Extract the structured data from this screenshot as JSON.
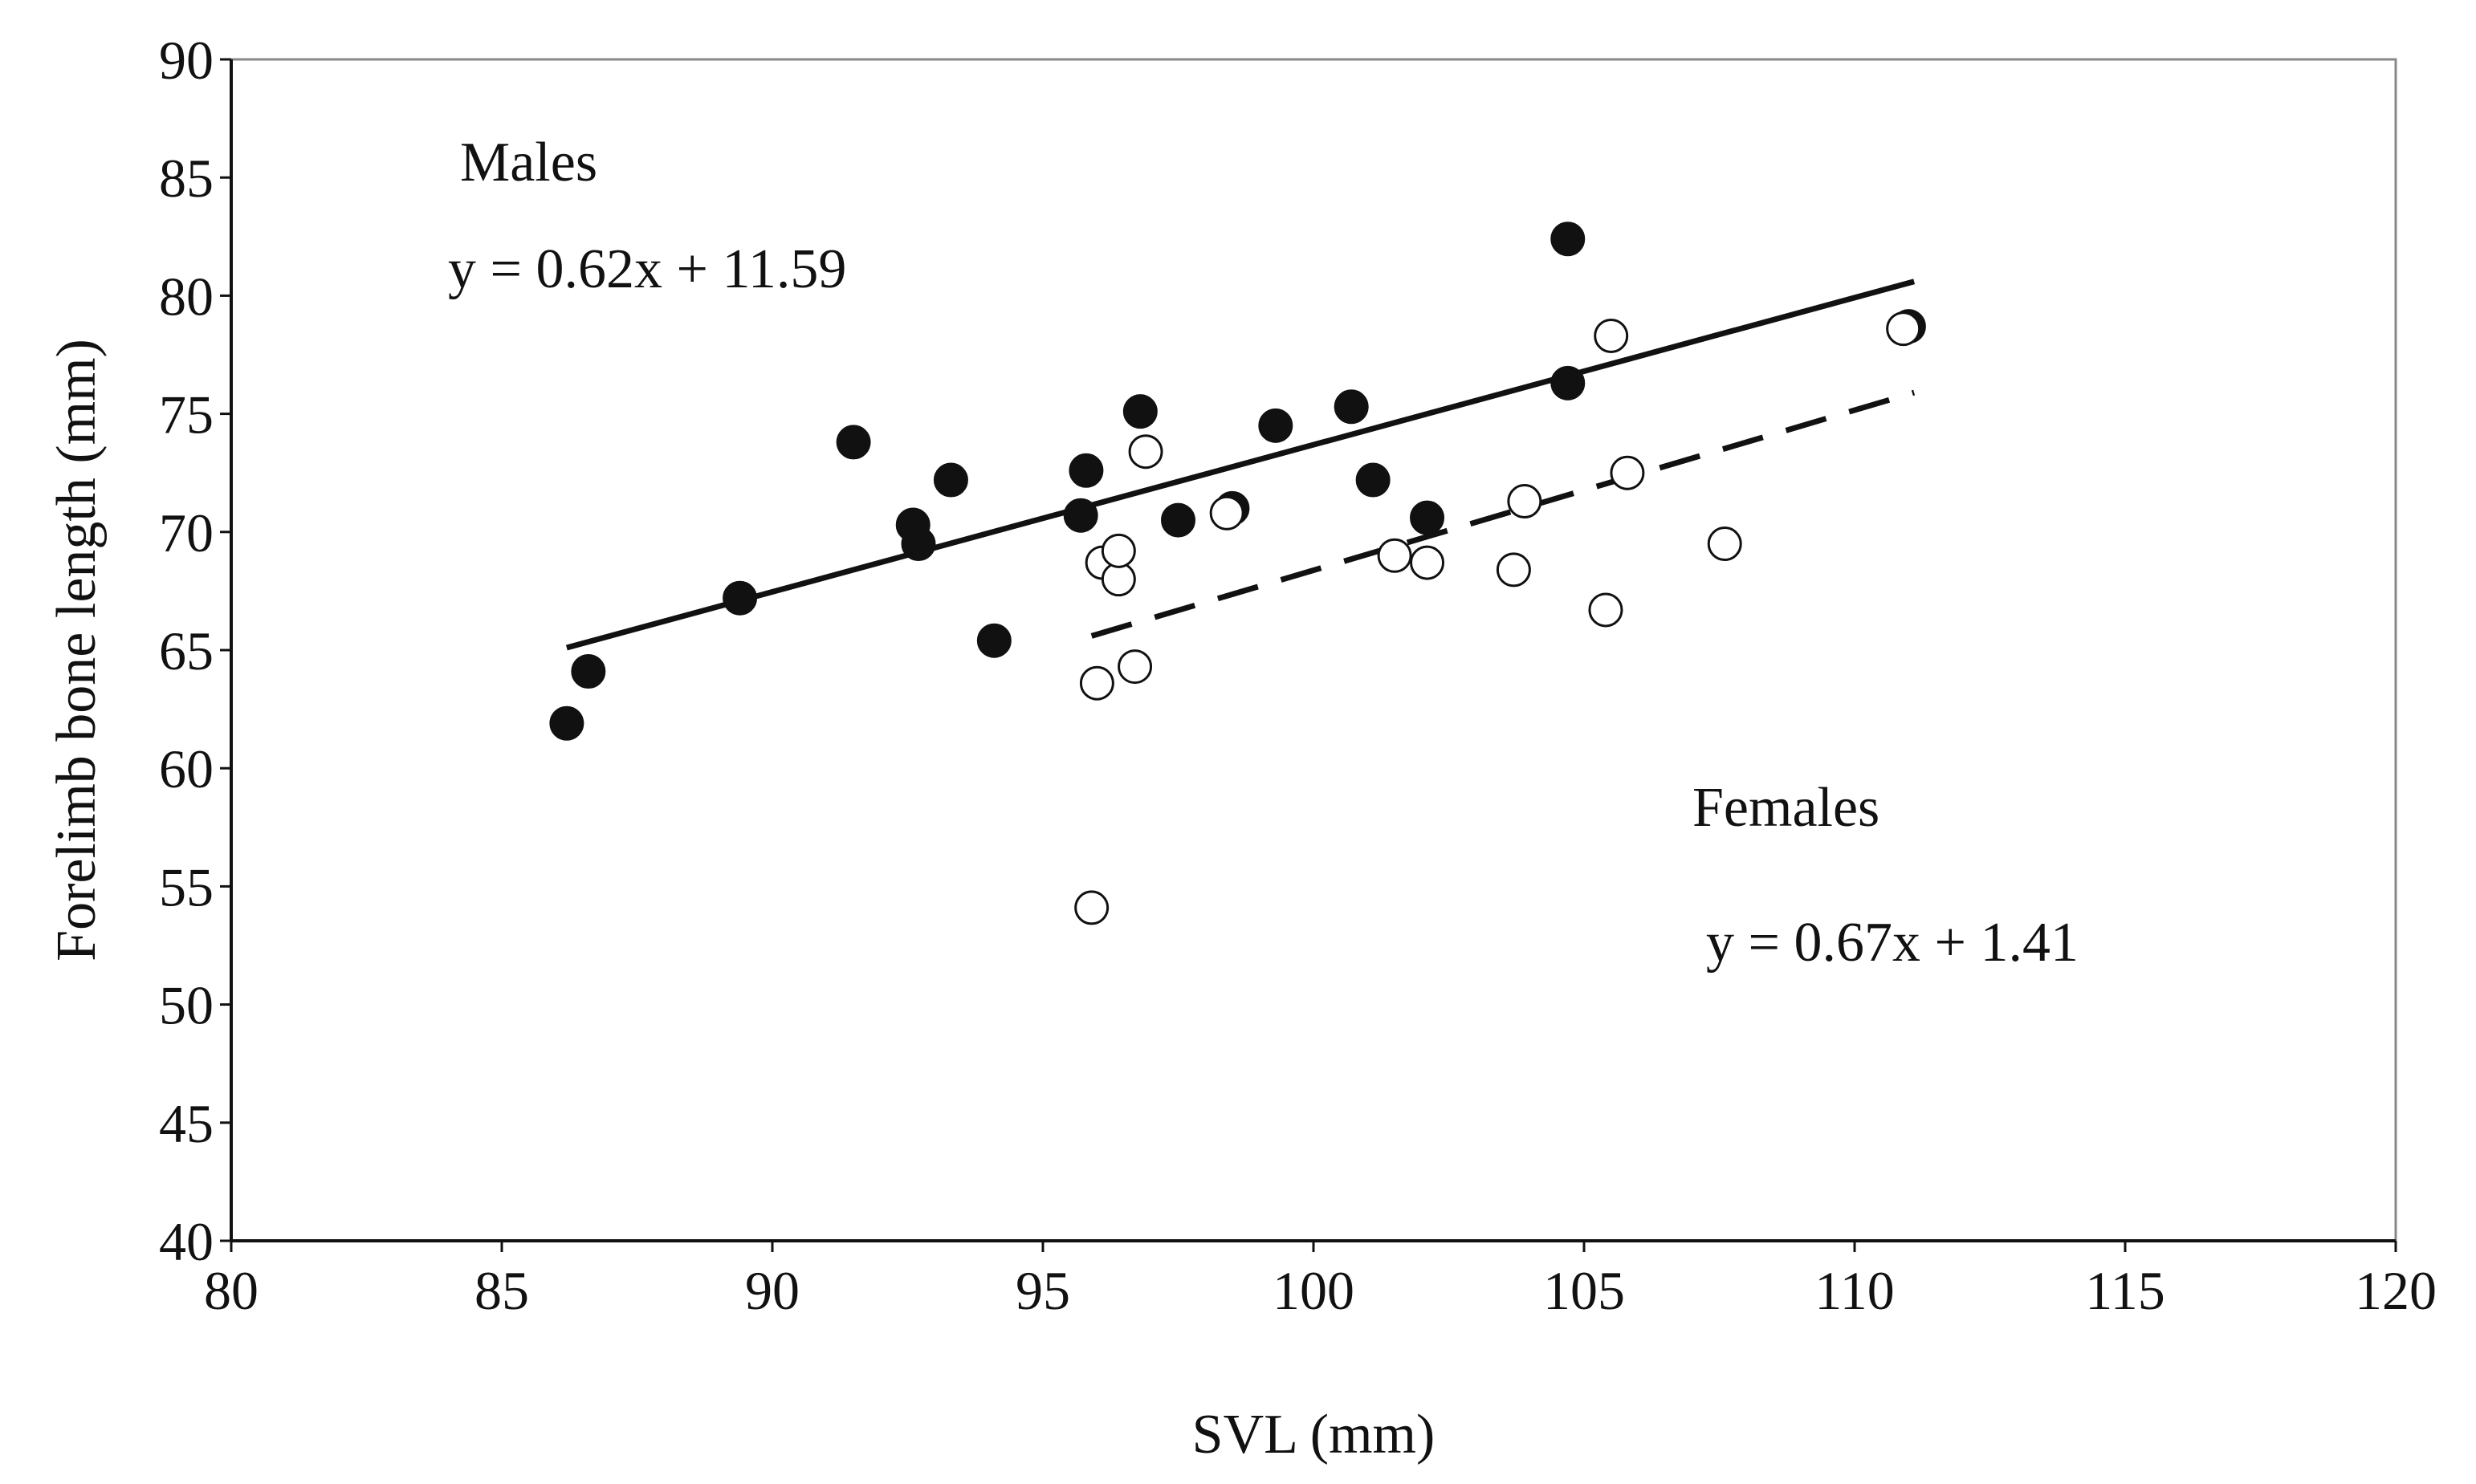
{
  "chart_data": {
    "type": "scatter",
    "title": "",
    "xlabel": "SVL (mm)",
    "ylabel": "Forelimb bone length (mm)",
    "xlim": [
      80,
      120
    ],
    "ylim": [
      40,
      90
    ],
    "xticks": [
      80,
      85,
      90,
      95,
      100,
      105,
      110,
      115,
      120
    ],
    "yticks": [
      40,
      45,
      50,
      55,
      60,
      65,
      70,
      75,
      80,
      85,
      90
    ],
    "grid": false,
    "colors": {
      "axis": "#111111",
      "frame": "#888888",
      "male": "#111111",
      "female_fill": "#ffffff"
    },
    "series": [
      {
        "name": "Males",
        "marker": "filled-circle",
        "points": [
          [
            86.2,
            61.9
          ],
          [
            86.6,
            64.1
          ],
          [
            89.4,
            67.2
          ],
          [
            91.5,
            73.8
          ],
          [
            92.6,
            70.3
          ],
          [
            92.7,
            69.5
          ],
          [
            93.3,
            72.2
          ],
          [
            94.1,
            65.4
          ],
          [
            95.7,
            70.7
          ],
          [
            95.8,
            72.6
          ],
          [
            96.8,
            75.1
          ],
          [
            97.5,
            70.5
          ],
          [
            98.5,
            71.0
          ],
          [
            99.3,
            74.5
          ],
          [
            100.7,
            75.3
          ],
          [
            101.1,
            72.2
          ],
          [
            102.1,
            70.6
          ],
          [
            104.7,
            76.3
          ],
          [
            104.7,
            82.4
          ],
          [
            111.0,
            78.7
          ]
        ],
        "trendline": {
          "equation": "y = 0.62x + 11.59",
          "x_range": [
            86.2,
            111.1
          ],
          "y_range": [
            65.1,
            80.6
          ],
          "style": "solid"
        }
      },
      {
        "name": "Females",
        "marker": "open-circle",
        "points": [
          [
            95.9,
            54.1
          ],
          [
            96.0,
            63.6
          ],
          [
            96.1,
            68.7
          ],
          [
            96.4,
            68.0
          ],
          [
            96.4,
            69.2
          ],
          [
            96.7,
            64.3
          ],
          [
            96.9,
            73.4
          ],
          [
            98.4,
            70.8
          ],
          [
            101.5,
            69.0
          ],
          [
            102.1,
            68.7
          ],
          [
            103.7,
            68.4
          ],
          [
            103.9,
            71.3
          ],
          [
            105.4,
            66.7
          ],
          [
            105.5,
            78.3
          ],
          [
            105.8,
            72.5
          ],
          [
            107.6,
            69.5
          ],
          [
            110.9,
            78.6
          ]
        ],
        "trendline": {
          "equation": "y = 0.67x + 1.41",
          "x_range": [
            95.9,
            111.1
          ],
          "y_range": [
            65.6,
            75.9
          ],
          "style": "dashed"
        }
      }
    ],
    "annotations": [
      {
        "id": "males-label",
        "text": "Males"
      },
      {
        "id": "males-equation",
        "text": "y = 0.62x + 11.59"
      },
      {
        "id": "females-label",
        "text": "Females"
      },
      {
        "id": "females-equation",
        "text": "y = 0.67x + 1.41"
      }
    ]
  }
}
